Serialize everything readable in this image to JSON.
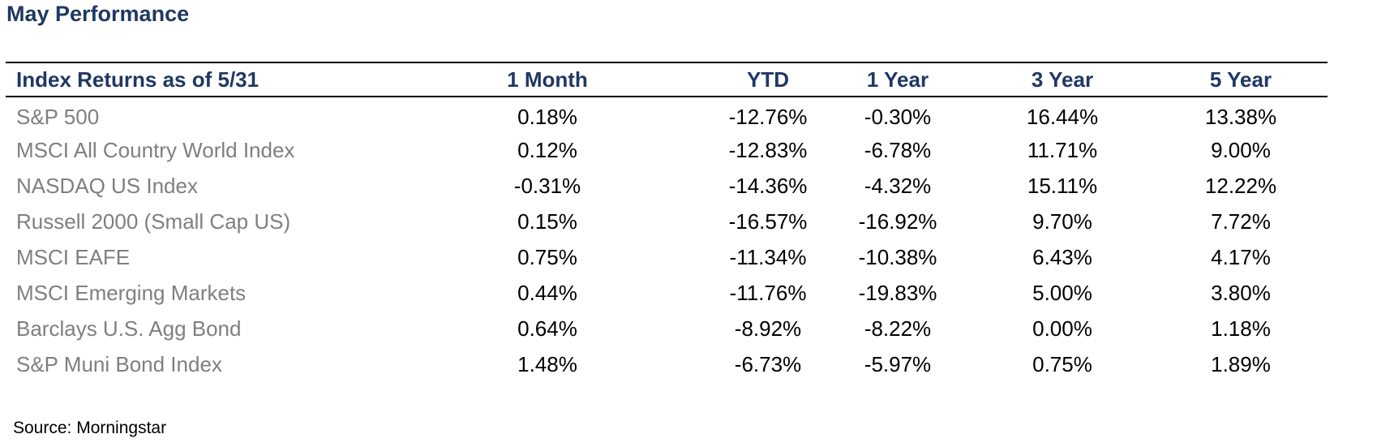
{
  "page": {
    "title": "May Performance",
    "source": "Source: Morningstar"
  },
  "chart_data": {
    "type": "table",
    "title": "May Performance",
    "header_label": "Index Returns as of 5/31",
    "columns": [
      "1 Month",
      "YTD",
      "1 Year",
      "3 Year",
      "5 Year"
    ],
    "rows": [
      {
        "label": "S&P 500",
        "values": [
          "0.18%",
          "-12.76%",
          "-0.30%",
          "16.44%",
          "13.38%"
        ]
      },
      {
        "label": "MSCI All Country World Index",
        "values": [
          "0.12%",
          "-12.83%",
          "-6.78%",
          "11.71%",
          "9.00%"
        ]
      },
      {
        "label": "NASDAQ US Index",
        "values": [
          "-0.31%",
          "-14.36%",
          "-4.32%",
          "15.11%",
          "12.22%"
        ]
      },
      {
        "label": "Russell 2000 (Small Cap US)",
        "values": [
          "0.15%",
          "-16.57%",
          "-16.92%",
          "9.70%",
          "7.72%"
        ]
      },
      {
        "label": "MSCI EAFE",
        "values": [
          "0.75%",
          "-11.34%",
          "-10.38%",
          "6.43%",
          "4.17%"
        ]
      },
      {
        "label": "MSCI Emerging Markets",
        "values": [
          "0.44%",
          "-11.76%",
          "-19.83%",
          "5.00%",
          "3.80%"
        ]
      },
      {
        "label": "Barclays U.S. Agg Bond",
        "values": [
          "0.64%",
          "-8.92%",
          "-8.22%",
          "0.00%",
          "1.18%"
        ]
      },
      {
        "label": "S&P Muni Bond Index",
        "values": [
          "1.48%",
          "-6.73%",
          "-5.97%",
          "0.75%",
          "1.89%"
        ]
      }
    ],
    "source": "Source: Morningstar"
  },
  "colors": {
    "heading": "#1F3864",
    "label_gray": "#7F7F7F",
    "value_black": "#000000",
    "rule": "#000000"
  }
}
